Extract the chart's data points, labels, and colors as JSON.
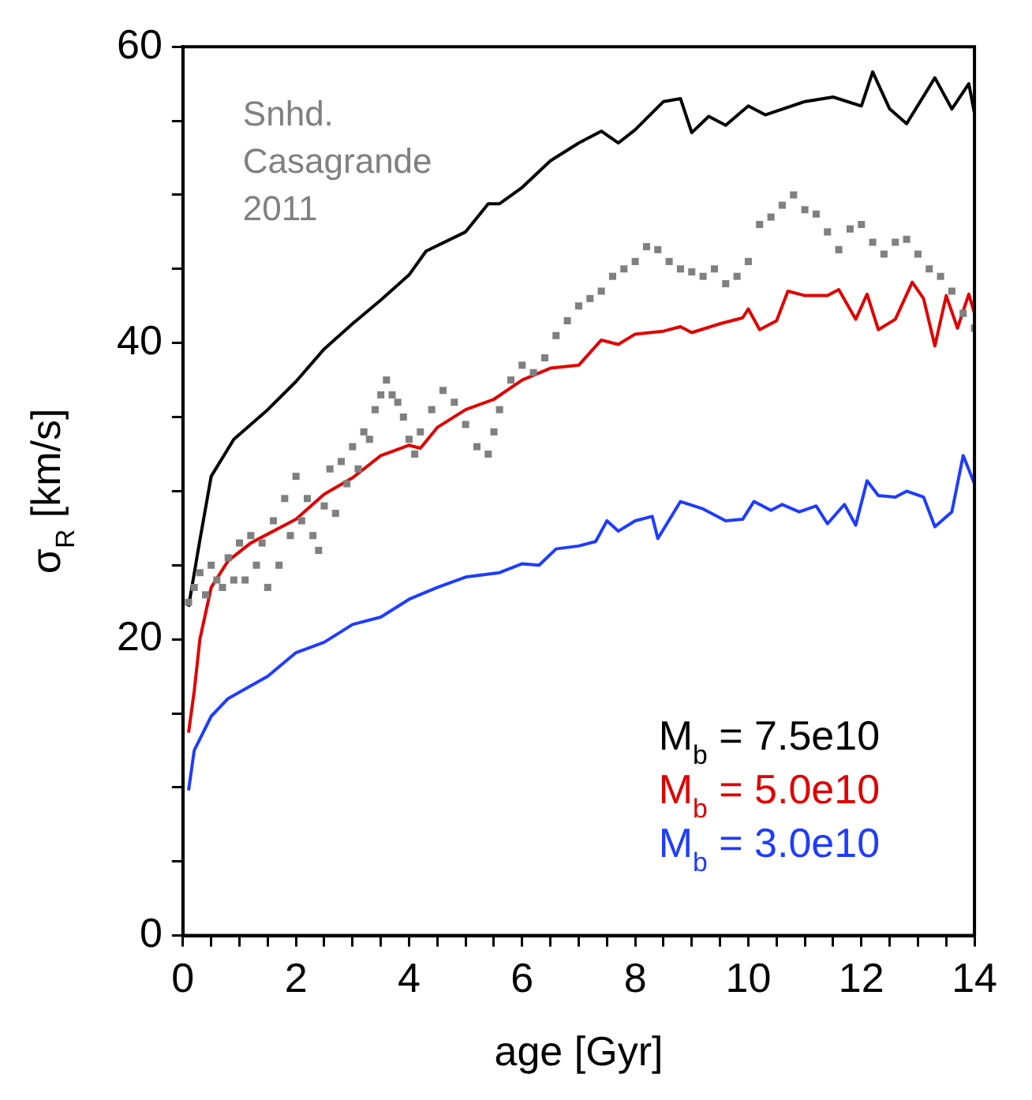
{
  "chart_data": {
    "type": "line",
    "xlabel": "age [Gyr]",
    "ylabel": "σ$_{R}$ [km/s]",
    "xlim": [
      0,
      14
    ],
    "ylim": [
      0,
      60
    ],
    "xticks": [
      0,
      {
        "value": 0.5,
        "label": null
      },
      {
        "value": 1,
        "label": null
      },
      {
        "value": 1.5,
        "label": null
      },
      2,
      {
        "value": 2.5,
        "label": null
      },
      {
        "value": 3,
        "label": null
      },
      {
        "value": 3.5,
        "label": null
      },
      4,
      {
        "value": 4.5,
        "label": null
      },
      {
        "value": 5,
        "label": null
      },
      {
        "value": 5.5,
        "label": null
      },
      6,
      {
        "value": 6.5,
        "label": null
      },
      {
        "value": 7,
        "label": null
      },
      {
        "value": 7.5,
        "label": null
      },
      8,
      {
        "value": 8.5,
        "label": null
      },
      {
        "value": 9,
        "label": null
      },
      {
        "value": 9.5,
        "label": null
      },
      10,
      {
        "value": 10.5,
        "label": null
      },
      {
        "value": 11,
        "label": null
      },
      {
        "value": 11.5,
        "label": null
      },
      12,
      {
        "value": 12.5,
        "label": null
      },
      {
        "value": 13,
        "label": null
      },
      {
        "value": 13.5,
        "label": null
      },
      14
    ],
    "yticks": [
      0,
      {
        "value": 5,
        "label": null
      },
      {
        "value": 10,
        "label": null
      },
      {
        "value": 15,
        "label": null
      },
      20,
      {
        "value": 25,
        "label": null
      },
      {
        "value": 30,
        "label": null
      },
      {
        "value": 35,
        "label": null
      },
      40,
      {
        "value": 45,
        "label": null
      },
      {
        "value": 50,
        "label": null
      },
      {
        "value": 55,
        "label": null
      },
      60
    ],
    "grid": false,
    "legend": "bottom right",
    "annotations": [
      "Snhd. Casagrande 2011"
    ],
    "series": [
      {
        "type": "scatter",
        "marker": "square",
        "color": "#808080",
        "x": [
          0.1,
          0.2,
          0.3,
          0.4,
          0.5,
          0.6,
          0.7,
          0.8,
          0.9,
          1.0,
          1.1,
          1.2,
          1.3,
          1.4,
          1.5,
          1.6,
          1.7,
          1.8,
          1.9,
          2.0,
          2.1,
          2.2,
          2.3,
          2.4,
          2.5,
          2.6,
          2.7,
          2.8,
          2.9,
          3.0,
          3.1,
          3.2,
          3.3,
          3.4,
          3.5,
          3.6,
          3.7,
          3.8,
          3.9,
          4.0,
          4.1,
          4.2,
          4.4,
          4.6,
          4.8,
          5.0,
          5.2,
          5.4,
          5.5,
          5.6,
          5.8,
          6.0,
          6.2,
          6.4,
          6.6,
          6.8,
          7.0,
          7.2,
          7.4,
          7.6,
          7.8,
          8.0,
          8.2,
          8.4,
          8.6,
          8.8,
          9.0,
          9.2,
          9.4,
          9.6,
          9.8,
          10.0,
          10.2,
          10.4,
          10.6,
          10.8,
          11.0,
          11.2,
          11.4,
          11.6,
          11.8,
          12.0,
          12.2,
          12.4,
          12.6,
          12.8,
          13.0,
          13.2,
          13.4,
          13.6,
          13.8,
          14.0
        ],
        "values": [
          22.5,
          23.5,
          24.5,
          23,
          25,
          24,
          23.5,
          25.5,
          24,
          26.5,
          24,
          27,
          25,
          26.5,
          23.5,
          28,
          25,
          29.5,
          27,
          31,
          28,
          29.5,
          27,
          26,
          29,
          31.5,
          28.5,
          32,
          30.5,
          33,
          31.5,
          34,
          33.5,
          35.5,
          36.5,
          37.5,
          36.5,
          36,
          35,
          33.5,
          32.5,
          34,
          35.5,
          36.8,
          36,
          34.5,
          33,
          32.5,
          34,
          35.5,
          37.5,
          38.5,
          38,
          39,
          40.5,
          41.5,
          42.5,
          43,
          43.5,
          44.5,
          45,
          45.5,
          46.5,
          46.3,
          45.5,
          45,
          44.8,
          44.5,
          45,
          44,
          44.5,
          45.5,
          48,
          48.5,
          49.3,
          50,
          49,
          48.7,
          47.5,
          46.3,
          47.7,
          48,
          46.8,
          46,
          46.8,
          47,
          46,
          45,
          44.5,
          43.5,
          42,
          41
        ]
      },
      {
        "name": "M$_{b}$ = 7.5e10",
        "color": "#000000",
        "x": [
          0.1,
          0.3,
          0.5,
          0.9,
          1.5,
          2,
          2.5,
          3,
          3.5,
          4,
          4.3,
          5,
          5.4,
          5.6,
          6,
          6.5,
          7,
          7.4,
          7.7,
          8,
          8.5,
          8.8,
          9,
          9.3,
          9.6,
          10,
          10.3,
          11,
          11.5,
          12,
          12.2,
          12.5,
          12.8,
          13.3,
          13.6,
          13.9,
          14
        ],
        "values": [
          22.2,
          26.7,
          31,
          33.5,
          35.5,
          37.4,
          39.6,
          41.3,
          42.9,
          44.6,
          46.2,
          47.5,
          49.4,
          49.4,
          50.5,
          52.3,
          53.5,
          54.3,
          53.5,
          54.4,
          56.3,
          56.5,
          54.2,
          55.3,
          54.7,
          56,
          55.4,
          56.3,
          56.6,
          56,
          58.3,
          55.8,
          54.8,
          57.9,
          55.8,
          57.5,
          55.5
        ]
      },
      {
        "name": "M$_{b}$ = 5.0e10",
        "color": "#e00000",
        "x": [
          0.1,
          0.2,
          0.3,
          0.5,
          0.8,
          1.2,
          2,
          2.5,
          3,
          3.5,
          4,
          4.2,
          4.5,
          5,
          5.5,
          6,
          6.5,
          7,
          7.4,
          7.7,
          8,
          8.5,
          8.8,
          9,
          9.5,
          9.9,
          10,
          10.2,
          10.5,
          10.7,
          11,
          11.4,
          11.6,
          11.9,
          12.1,
          12.3,
          12.6,
          12.9,
          13.1,
          13.3,
          13.5,
          13.7,
          13.9,
          14
        ],
        "values": [
          13.7,
          16.5,
          20,
          23.5,
          25.3,
          26.5,
          28.1,
          29.8,
          30.9,
          32.4,
          33.1,
          32.9,
          34.3,
          35.5,
          36.2,
          37.5,
          38.3,
          38.5,
          40.2,
          39.9,
          40.6,
          40.8,
          41.1,
          40.7,
          41.3,
          41.7,
          42.3,
          40.9,
          41.5,
          43.5,
          43.2,
          43.2,
          43.6,
          41.6,
          43.3,
          40.9,
          41.6,
          44.1,
          43,
          39.8,
          43.2,
          41,
          43.3,
          42
        ]
      },
      {
        "name": "M$_{b}$ = 3.0e10",
        "color": "#1f3cff",
        "x": [
          0.1,
          0.2,
          0.5,
          0.8,
          1.5,
          2,
          2.5,
          3,
          3.5,
          4,
          4.5,
          5,
          5.6,
          6,
          6.3,
          6.6,
          7,
          7.3,
          7.5,
          7.7,
          8,
          8.3,
          8.4,
          8.8,
          9.2,
          9.6,
          9.9,
          10.1,
          10.4,
          10.6,
          10.9,
          11.2,
          11.4,
          11.7,
          11.9,
          12.1,
          12.3,
          12.6,
          12.8,
          13.1,
          13.3,
          13.6,
          13.8,
          14
        ],
        "values": [
          9.8,
          12.5,
          14.8,
          16,
          17.5,
          19.1,
          19.8,
          21,
          21.5,
          22.7,
          23.5,
          24.2,
          24.5,
          25.1,
          25,
          26.1,
          26.3,
          26.6,
          28,
          27.3,
          28,
          28.3,
          26.8,
          29.3,
          28.8,
          28,
          28.1,
          29.3,
          28.7,
          29.1,
          28.6,
          29,
          27.8,
          29.1,
          27.7,
          30.7,
          29.7,
          29.6,
          30,
          29.6,
          27.6,
          28.6,
          32.4,
          30.5
        ]
      }
    ]
  }
}
